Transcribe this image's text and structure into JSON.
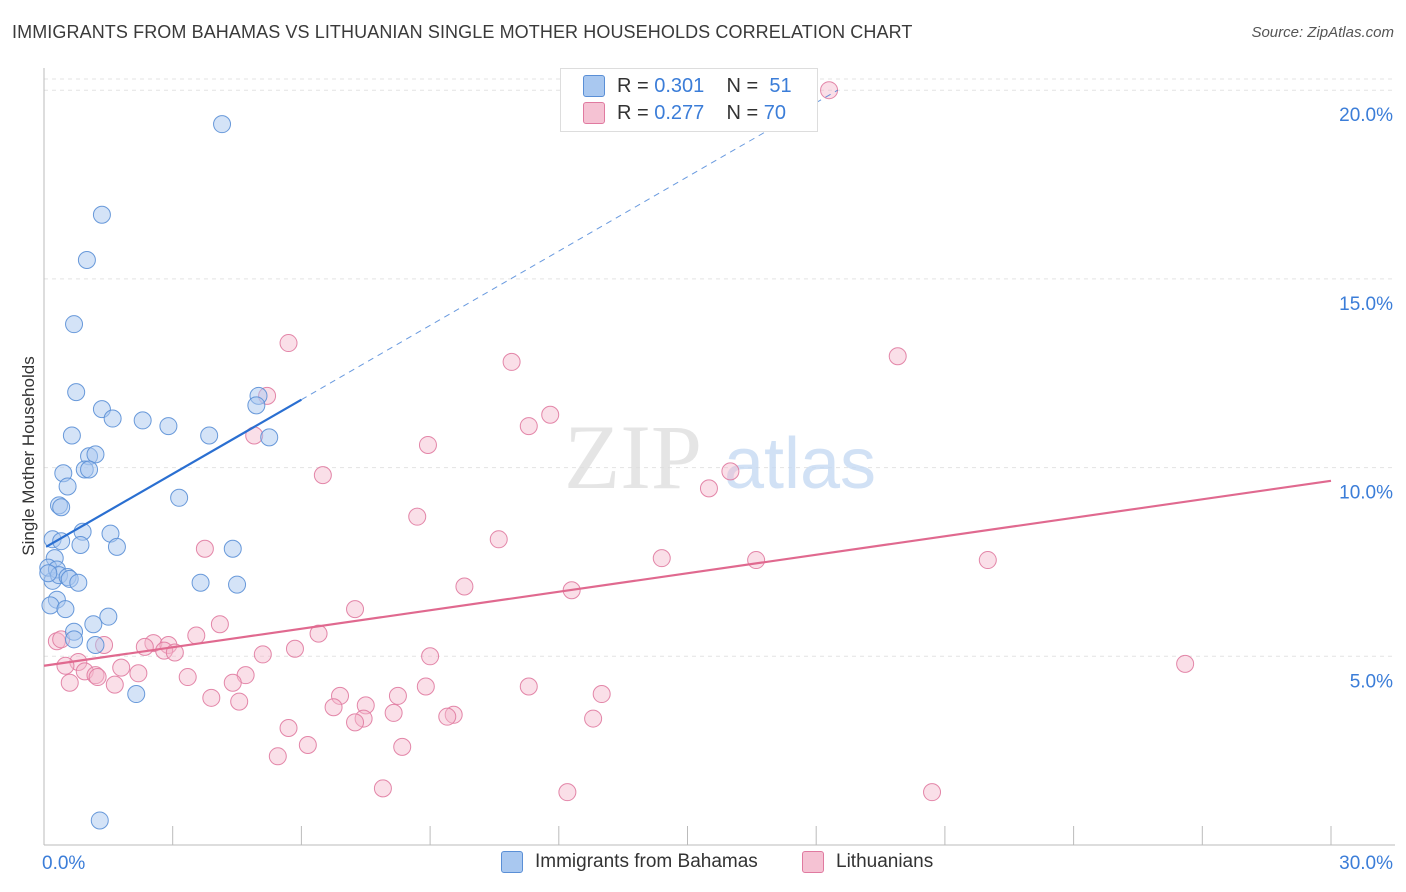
{
  "title": "IMMIGRANTS FROM BAHAMAS VS LITHUANIAN SINGLE MOTHER HOUSEHOLDS CORRELATION CHART",
  "source": "Source: ZipAtlas.com",
  "watermark": {
    "zip": "ZIP",
    "atlas": "atlas"
  },
  "legend_top": [
    {
      "r_label": "R =",
      "r_value": "0.301",
      "n_label": "N =",
      "n_value": "51"
    },
    {
      "r_label": "R =",
      "r_value": "0.277",
      "n_label": "N =",
      "n_value": "70"
    }
  ],
  "chart_data": {
    "type": "scatter",
    "title": "IMMIGRANTS FROM BAHAMAS VS LITHUANIAN SINGLE MOTHER HOUSEHOLDS CORRELATION CHART",
    "xlabel": "",
    "ylabel": "Single Mother Households",
    "xlim": [
      0,
      30
    ],
    "ylim": [
      0,
      20.8
    ],
    "x_tick_labels": [
      "0.0%",
      "30.0%"
    ],
    "y_ticks": [
      5,
      10,
      15,
      20
    ],
    "y_tick_labels": [
      "5.0%",
      "10.0%",
      "15.0%",
      "20.0%"
    ],
    "grid": true,
    "legend_position": "bottom",
    "colors": {
      "blue_fill": "#a9c8f0",
      "blue_stroke": "#5a8fd6",
      "blue_line": "#2a6fd1",
      "pink_fill": "#f5b7cb",
      "pink_stroke": "#e07aa0",
      "pink_line": "#e0698f",
      "tick_label": "#3b7dd8",
      "grid": "#e3e3e3"
    },
    "series": [
      {
        "name": "Immigrants from Bahamas",
        "r": 0.301,
        "n": 51,
        "trend": {
          "x0": 0.05,
          "y0": 7.9,
          "x1": 6.0,
          "y1": 11.8,
          "dash_x1": 18.5,
          "dash_y1": 20.0
        },
        "points": [
          [
            4.15,
            19.1
          ],
          [
            1.35,
            16.7
          ],
          [
            1.0,
            15.5
          ],
          [
            0.7,
            13.8
          ],
          [
            0.75,
            12.0
          ],
          [
            0.2,
            7.0
          ],
          [
            5.0,
            11.9
          ],
          [
            4.95,
            11.65
          ],
          [
            1.35,
            11.55
          ],
          [
            1.6,
            11.3
          ],
          [
            2.3,
            11.25
          ],
          [
            2.9,
            11.1
          ],
          [
            0.65,
            10.85
          ],
          [
            3.85,
            10.85
          ],
          [
            5.25,
            10.8
          ],
          [
            1.05,
            10.3
          ],
          [
            1.2,
            10.35
          ],
          [
            0.95,
            9.95
          ],
          [
            1.05,
            9.95
          ],
          [
            0.45,
            9.85
          ],
          [
            0.55,
            9.5
          ],
          [
            3.15,
            9.2
          ],
          [
            0.35,
            9.0
          ],
          [
            0.4,
            8.95
          ],
          [
            0.9,
            8.3
          ],
          [
            1.55,
            8.25
          ],
          [
            0.2,
            8.1
          ],
          [
            0.4,
            8.05
          ],
          [
            0.85,
            7.95
          ],
          [
            1.7,
            7.9
          ],
          [
            4.4,
            7.85
          ],
          [
            0.25,
            7.6
          ],
          [
            0.1,
            7.35
          ],
          [
            0.3,
            7.3
          ],
          [
            0.35,
            7.15
          ],
          [
            0.55,
            7.1
          ],
          [
            0.6,
            7.05
          ],
          [
            0.8,
            6.95
          ],
          [
            3.65,
            6.95
          ],
          [
            4.5,
            6.9
          ],
          [
            0.3,
            6.5
          ],
          [
            0.15,
            6.35
          ],
          [
            0.5,
            6.25
          ],
          [
            1.5,
            6.05
          ],
          [
            1.15,
            5.85
          ],
          [
            0.7,
            5.65
          ],
          [
            0.7,
            5.45
          ],
          [
            1.2,
            5.3
          ],
          [
            2.15,
            4.0
          ],
          [
            1.3,
            0.65
          ],
          [
            0.1,
            7.2
          ]
        ]
      },
      {
        "name": "Lithuanians",
        "r": 0.277,
        "n": 70,
        "trend": {
          "x0": 0.0,
          "y0": 4.75,
          "x1": 30.0,
          "y1": 9.65
        },
        "points": [
          [
            18.3,
            20.0
          ],
          [
            5.7,
            13.3
          ],
          [
            10.9,
            12.8
          ],
          [
            19.9,
            12.95
          ],
          [
            5.2,
            11.9
          ],
          [
            11.8,
            11.4
          ],
          [
            11.3,
            11.1
          ],
          [
            4.9,
            10.85
          ],
          [
            8.95,
            10.6
          ],
          [
            16.0,
            9.9
          ],
          [
            6.5,
            9.8
          ],
          [
            15.5,
            9.45
          ],
          [
            8.7,
            8.7
          ],
          [
            10.6,
            8.1
          ],
          [
            3.75,
            7.85
          ],
          [
            14.4,
            7.6
          ],
          [
            16.6,
            7.55
          ],
          [
            22.0,
            7.55
          ],
          [
            9.8,
            6.85
          ],
          [
            12.3,
            6.75
          ],
          [
            7.25,
            6.25
          ],
          [
            4.1,
            5.85
          ],
          [
            6.4,
            5.6
          ],
          [
            3.55,
            5.55
          ],
          [
            1.4,
            5.3
          ],
          [
            2.55,
            5.35
          ],
          [
            2.35,
            5.25
          ],
          [
            2.9,
            5.3
          ],
          [
            2.8,
            5.15
          ],
          [
            3.05,
            5.1
          ],
          [
            5.85,
            5.2
          ],
          [
            5.1,
            5.05
          ],
          [
            9.0,
            5.0
          ],
          [
            0.3,
            5.4
          ],
          [
            0.8,
            4.85
          ],
          [
            0.5,
            4.75
          ],
          [
            0.95,
            4.6
          ],
          [
            1.8,
            4.7
          ],
          [
            2.2,
            4.55
          ],
          [
            1.2,
            4.5
          ],
          [
            1.25,
            4.45
          ],
          [
            4.7,
            4.5
          ],
          [
            3.35,
            4.45
          ],
          [
            0.6,
            4.3
          ],
          [
            1.65,
            4.25
          ],
          [
            4.4,
            4.3
          ],
          [
            8.9,
            4.2
          ],
          [
            11.3,
            4.2
          ],
          [
            3.9,
            3.9
          ],
          [
            4.55,
            3.8
          ],
          [
            6.9,
            3.95
          ],
          [
            8.25,
            3.95
          ],
          [
            13.0,
            4.0
          ],
          [
            7.5,
            3.7
          ],
          [
            6.75,
            3.65
          ],
          [
            8.15,
            3.5
          ],
          [
            9.55,
            3.45
          ],
          [
            9.4,
            3.4
          ],
          [
            7.45,
            3.35
          ],
          [
            12.8,
            3.35
          ],
          [
            7.25,
            3.25
          ],
          [
            5.7,
            3.1
          ],
          [
            6.15,
            2.65
          ],
          [
            8.35,
            2.6
          ],
          [
            5.45,
            2.35
          ],
          [
            7.9,
            1.5
          ],
          [
            12.2,
            1.4
          ],
          [
            20.7,
            1.4
          ],
          [
            26.6,
            4.8
          ],
          [
            0.4,
            5.45
          ]
        ]
      }
    ]
  }
}
